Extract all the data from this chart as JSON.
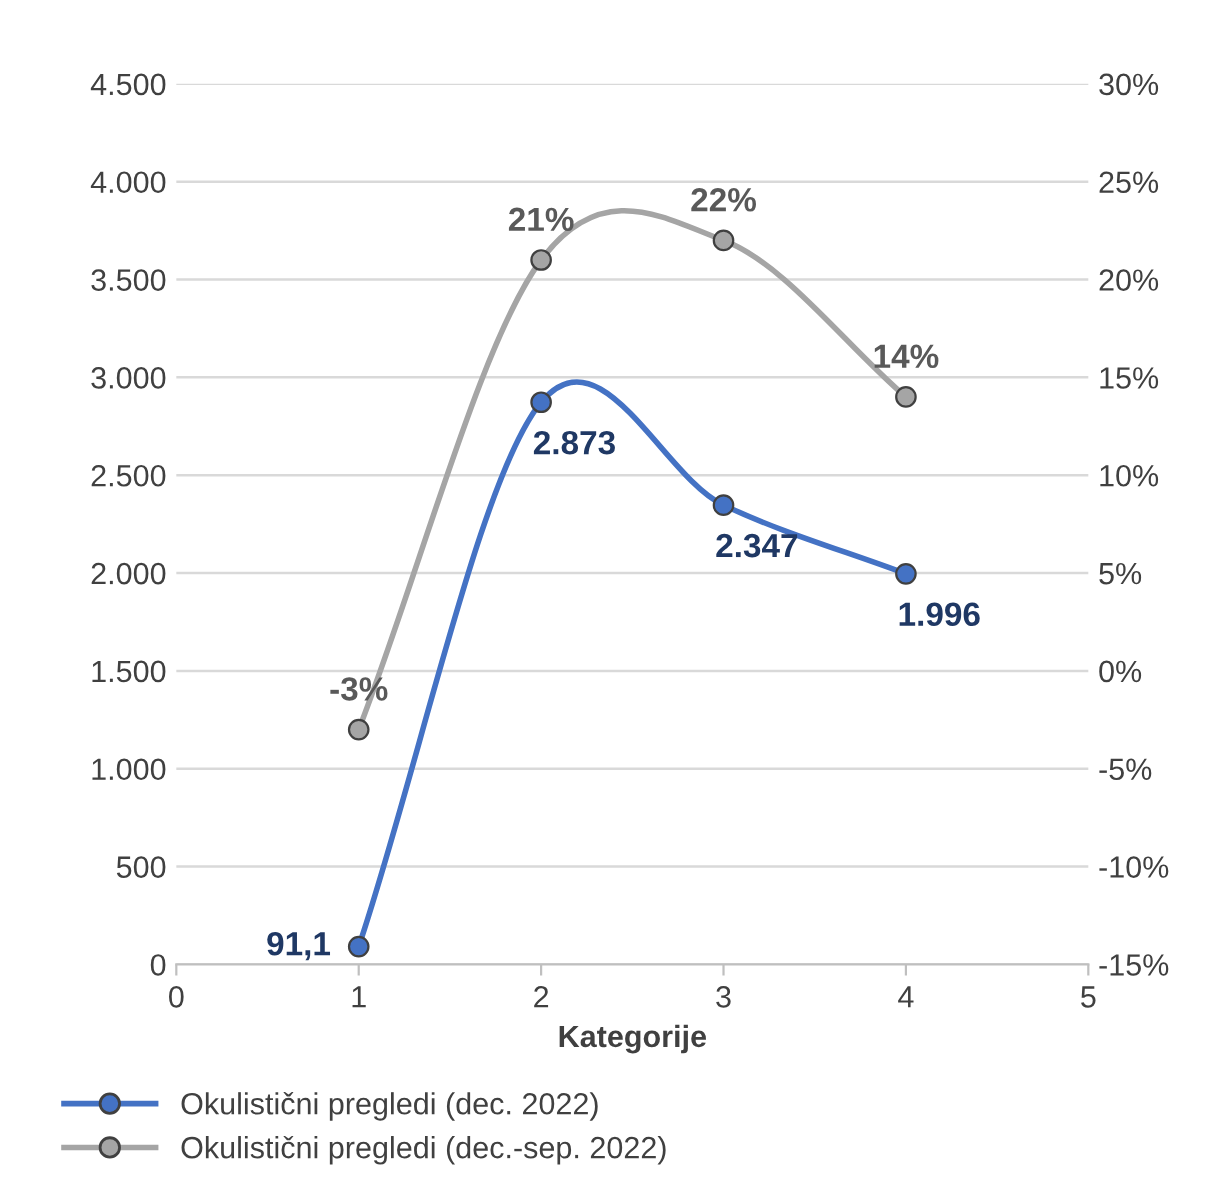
{
  "chart_data": {
    "type": "line",
    "xlabel": "Kategorije",
    "x": [
      1,
      2,
      3,
      4
    ],
    "series": [
      {
        "name": "Okulistični pregledi (dec. 2022)",
        "color": "#4472c4",
        "values": [
          91.1,
          2873,
          2347,
          1996
        ],
        "value_labels": [
          "91,1",
          "2.873",
          "2.347",
          "1.996"
        ]
      },
      {
        "name": "Okulistični pregledi (dec.-sep. 2022)",
        "color": "#a5a5a5",
        "axis": "y2",
        "values": [
          -3,
          21,
          22,
          14
        ],
        "value_labels": [
          "-3%",
          "21%",
          "22%",
          "14%"
        ]
      }
    ],
    "xlim": [
      0,
      5
    ],
    "xticks": [
      0,
      1,
      2,
      3,
      4,
      5
    ],
    "ylim": [
      0,
      4500
    ],
    "yticks": [
      0,
      500,
      {
        "value": 1000,
        "label": "1.000"
      },
      {
        "value": 1500,
        "label": "1.500"
      },
      {
        "value": 2000,
        "label": "2.000"
      },
      {
        "value": 2500,
        "label": "2.500"
      },
      {
        "value": 3000,
        "label": "3.000"
      },
      {
        "value": 3500,
        "label": "3.500"
      },
      {
        "value": 4000,
        "label": "4.000"
      },
      {
        "value": 4500,
        "label": "4.500"
      }
    ],
    "y2lim": [
      -15,
      30
    ],
    "y2ticks": [
      {
        "value": -15,
        "label": "-15%"
      },
      {
        "value": -10,
        "label": "-10%"
      },
      {
        "value": -5,
        "label": "-5%"
      },
      {
        "value": 0,
        "label": "0%"
      },
      {
        "value": 5,
        "label": "5%"
      },
      {
        "value": 10,
        "label": "10%"
      },
      {
        "value": 15,
        "label": "15%"
      },
      {
        "value": 20,
        "label": "20%"
      },
      {
        "value": 25,
        "label": "25%"
      },
      {
        "value": 30,
        "label": "30%"
      }
    ],
    "grid": "y",
    "legend": "bottom",
    "marker": "circle",
    "line_style": "solid"
  }
}
